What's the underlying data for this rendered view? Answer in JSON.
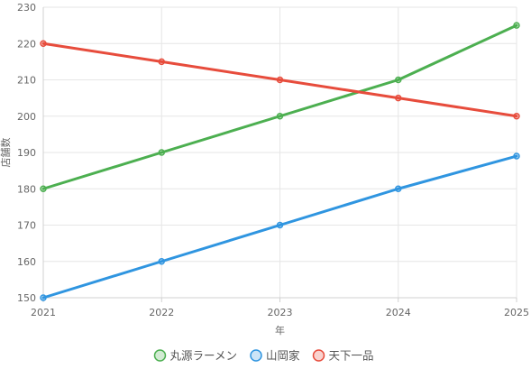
{
  "chart_data": {
    "type": "line",
    "title": "",
    "xlabel": "年",
    "ylabel": "店舗数",
    "categories": [
      "2021",
      "2022",
      "2023",
      "2024",
      "2025"
    ],
    "ylim": [
      150,
      230
    ],
    "yticks": [
      150,
      160,
      170,
      180,
      190,
      200,
      210,
      220,
      230
    ],
    "grid": true,
    "legend_position": "bottom",
    "series": [
      {
        "name": "丸源ラーメン",
        "color": "#4caf50",
        "values": [
          180,
          190,
          200,
          210,
          225
        ]
      },
      {
        "name": "山岡家",
        "color": "#2f95e0",
        "values": [
          150,
          160,
          170,
          180,
          189
        ]
      },
      {
        "name": "天下一品",
        "color": "#e74c3c",
        "values": [
          220,
          215,
          210,
          205,
          200
        ]
      }
    ]
  }
}
